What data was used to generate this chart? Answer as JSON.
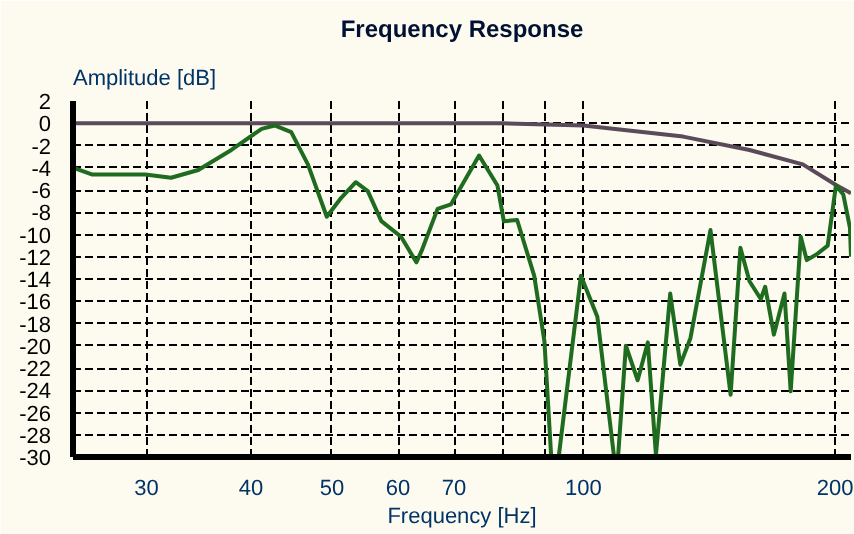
{
  "chart_data": {
    "type": "line",
    "title": "Frequency Response",
    "xlabel": "Frequency [Hz]",
    "ylabel": "Amplitude [dB]",
    "log": "x",
    "grid": true,
    "marker": "none",
    "line_style": "solid",
    "xlim": [
      24.5,
      209
    ],
    "ylim": [
      -30,
      2
    ],
    "xticks": [
      30,
      40,
      50,
      60,
      70,
      {
        "value": 80,
        "label": null
      },
      {
        "value": 90,
        "label": null
      },
      100,
      200
    ],
    "yticks": [
      2,
      0,
      -2,
      -4,
      -6,
      -8,
      -10,
      -12,
      -14,
      -16,
      -18,
      -20,
      -22,
      -24,
      -26,
      -28,
      -30
    ],
    "series": [
      {
        "color": "#5a4a5a",
        "x": [
          24.5,
          50,
          80,
          100,
          131.6,
          158,
          183,
          201,
          209
        ],
        "values": [
          0,
          0,
          0,
          -0.2,
          -1.2,
          -2.4,
          -3.7,
          -5.6,
          -6.3
        ]
      },
      {
        "color": "#1f6b1f",
        "x": [
          24.5,
          25.8,
          29.9,
          32.1,
          34.6,
          37.9,
          41.2,
          42.7,
          44.7,
          46.8,
          49.3,
          51.3,
          53.4,
          55.2,
          57.3,
          60.5,
          63.1,
          64,
          66.9,
          69.4,
          75.0,
          78.9,
          80.3,
          83.3,
          87.3,
          89.8,
          91.5,
          93.4,
          99.3,
          103.9,
          106.4,
          108.8,
          110,
          112.4,
          116.1,
          119.4,
          122.1,
          127,
          130.6,
          134.3,
          141.9,
          150,
          154.1,
          158,
          163,
          165,
          169,
          174,
          177,
          182,
          185,
          190,
          196,
          200.5,
          204.6,
          208.4,
          209
        ],
        "values": [
          -4.0,
          -4.6,
          -4.6,
          -4.9,
          -4.2,
          -2.4,
          -0.5,
          -0.2,
          -0.8,
          -3.7,
          -8.4,
          -6.7,
          -5.3,
          -6.1,
          -8.8,
          -10.2,
          -12.5,
          -11.5,
          -7.7,
          -7.3,
          -2.9,
          -5.6,
          -8.8,
          -8.7,
          -13.7,
          -19.6,
          -30,
          -30,
          -13.7,
          -17.4,
          -23.9,
          -30,
          -30,
          -20,
          -23.1,
          -19.7,
          -29.8,
          -15.3,
          -21.7,
          -19.3,
          -9.6,
          -24.4,
          -11.2,
          -14.2,
          -15.8,
          -14.7,
          -19,
          -15.3,
          -24.1,
          -10.2,
          -12.3,
          -11.8,
          -11,
          -5.6,
          -6.4,
          -9.4,
          -12
        ]
      }
    ]
  }
}
